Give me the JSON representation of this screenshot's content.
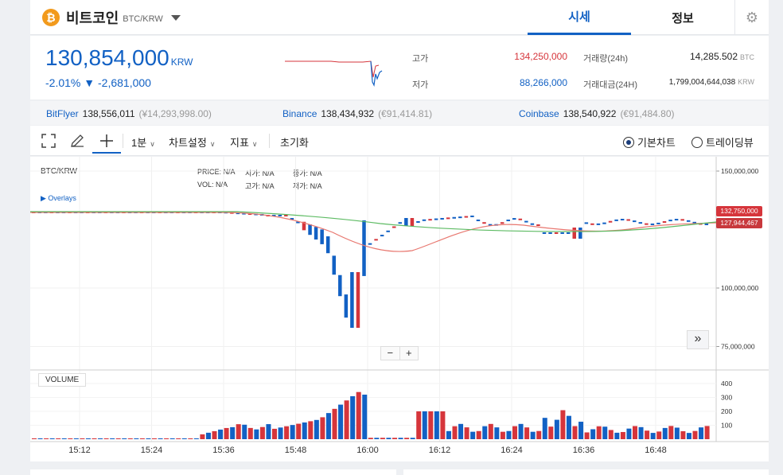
{
  "header": {
    "coin_symbol": "₿",
    "coin_name": "비트코인",
    "pair": "BTC/KRW",
    "tabs": [
      {
        "label": "시세",
        "active": true
      },
      {
        "label": "정보",
        "active": false
      }
    ],
    "settings_icon": "⚙"
  },
  "price": {
    "current": "130,854,000",
    "unit": "KRW",
    "change": "-2.01% ▼ -2,681,000"
  },
  "stats": {
    "high_label": "고가",
    "high_value": "134,250,000",
    "low_label": "저가",
    "low_value": "88,266,000",
    "volume_label": "거래량(24h)",
    "volume_value": "14,285.502",
    "volume_unit": "BTC",
    "amount_label": "거래대금(24H)",
    "amount_value": "1,799,004,644,038",
    "amount_unit": "KRW"
  },
  "exchanges": [
    {
      "name": "BitFlyer",
      "price": "138,556,011",
      "fx": "(¥14,293,998.00)"
    },
    {
      "name": "Binance",
      "price": "138,434,932",
      "fx": "(€91,414.81)"
    },
    {
      "name": "Coinbase",
      "price": "138,540,922",
      "fx": "(€91,484.80)"
    }
  ],
  "toolbar": {
    "interval": "1분",
    "chart_settings": "차트설정",
    "indicators": "지표",
    "reset": "초기화",
    "basic_chart": "기본차트",
    "tradingview": "트레이딩뷰"
  },
  "chart": {
    "symbol": "BTC/KRW",
    "legend_price_label": "PRICE:",
    "legend_price_value": "N/A",
    "legend_open_label": "시가:",
    "legend_open_value": "N/A",
    "legend_close_label": "종가:",
    "legend_close_value": "N/A",
    "legend_vol_label": "VOL:",
    "legend_vol_value": "N/A",
    "legend_high_label": "고가:",
    "legend_high_value": "N/A",
    "legend_low_label": "저가:",
    "legend_low_value": "N/A",
    "overlays": "▶ Overlays",
    "volume_label": "VOLUME",
    "price_ticks": [
      "150,000,000",
      "100,000,000",
      "75,000,000"
    ],
    "volume_ticks": [
      "400",
      "300",
      "200",
      "100"
    ],
    "time_ticks": [
      "15:12",
      "15:24",
      "15:36",
      "15:48",
      "16:00",
      "16:12",
      "16:24",
      "16:36",
      "16:48"
    ],
    "last_price_tag": "132,750,000",
    "ma_tag": "127,944,467",
    "zoom_out": "−",
    "zoom_in": "+",
    "scroll_right": "»",
    "colors": {
      "up": "#d6353b",
      "down": "#1261c4",
      "ma_short": "#e8776f",
      "ma_long": "#5dbb63"
    }
  }
}
